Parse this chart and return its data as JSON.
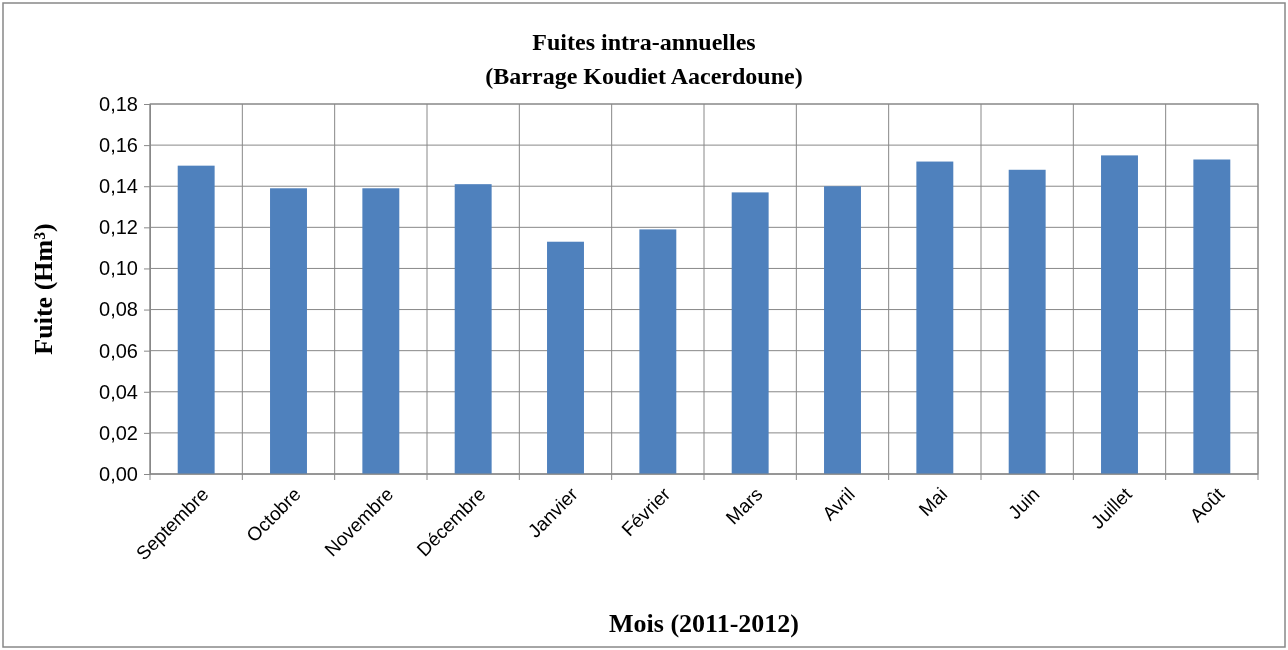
{
  "chart_data": {
    "type": "bar",
    "title": "Fuites intra-annuelles",
    "subtitle": "(Barrage Koudiet Aacerdoune)",
    "xlabel": "Mois (2011-2012)",
    "ylabel": "Fuite (Hm³)",
    "categories": [
      "Septembre",
      "Octobre",
      "Novembre",
      "Décembre",
      "Janvier",
      "Février",
      "Mars",
      "Avril",
      "Mai",
      "Juin",
      "Juillet",
      "Août"
    ],
    "values": [
      0.15,
      0.139,
      0.139,
      0.141,
      0.113,
      0.119,
      0.137,
      0.14,
      0.152,
      0.148,
      0.155,
      0.153
    ],
    "color": "#4f81bd",
    "ylim": [
      0,
      0.18
    ],
    "yticks": [
      {
        "value": 0,
        "label": "0,00"
      },
      {
        "value": 0.02,
        "label": "0,02"
      },
      {
        "value": 0.04,
        "label": "0,04"
      },
      {
        "value": 0.06,
        "label": "0,06"
      },
      {
        "value": 0.08,
        "label": "0,08"
      },
      {
        "value": 0.1,
        "label": "0,10"
      },
      {
        "value": 0.12,
        "label": "0,12"
      },
      {
        "value": 0.14,
        "label": "0,14"
      },
      {
        "value": 0.16,
        "label": "0,16"
      },
      {
        "value": 0.18,
        "label": "0,18"
      }
    ],
    "grid": true
  }
}
